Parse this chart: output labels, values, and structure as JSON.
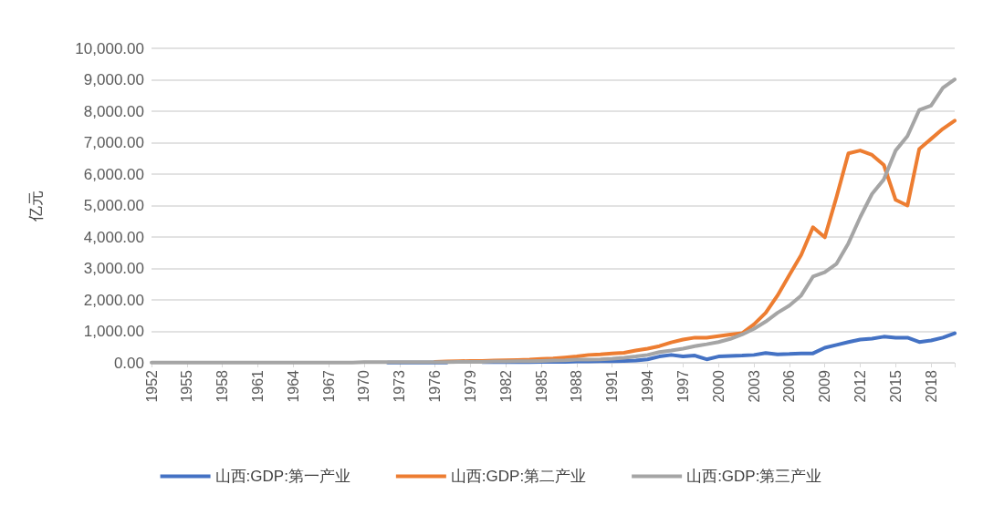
{
  "chart_data": {
    "type": "line",
    "ylabel": "亿元",
    "categories": [
      "1952",
      null,
      null,
      "1955",
      null,
      null,
      "1958",
      null,
      null,
      "1961",
      null,
      null,
      "1964",
      null,
      null,
      "1967",
      null,
      null,
      "1970",
      null,
      null,
      "1973",
      null,
      null,
      "1976",
      null,
      null,
      "1979",
      null,
      null,
      "1982",
      null,
      null,
      "1985",
      null,
      null,
      "1988",
      null,
      null,
      "1991",
      null,
      null,
      "1994",
      null,
      null,
      "1997",
      null,
      null,
      "2000",
      null,
      null,
      "2003",
      null,
      null,
      "2006",
      null,
      null,
      "2009",
      null,
      null,
      "2012",
      null,
      null,
      "2015",
      null,
      null,
      "2018",
      null,
      null
    ],
    "series": [
      {
        "name": "山西:GDP:第一产业",
        "color": "#4472c4",
        "values": [
          null,
          null,
          null,
          null,
          null,
          null,
          null,
          null,
          null,
          null,
          null,
          null,
          null,
          null,
          null,
          null,
          null,
          null,
          null,
          null,
          10,
          10,
          10,
          10,
          10,
          10,
          null,
          null,
          20,
          20,
          20,
          20,
          20,
          30,
          30,
          30,
          40,
          40,
          50,
          50,
          60,
          70,
          110,
          200,
          250,
          200,
          230,
          110,
          200,
          220,
          230,
          250,
          310,
          270,
          280,
          300,
          300,
          480,
          570,
          660,
          740,
          770,
          830,
          800,
          800,
          660,
          710,
          800,
          940
        ]
      },
      {
        "name": "山西:GDP:第二产业",
        "color": "#ed7d31",
        "values": [
          null,
          null,
          null,
          null,
          null,
          null,
          null,
          null,
          null,
          null,
          null,
          null,
          null,
          null,
          null,
          null,
          null,
          null,
          null,
          null,
          null,
          null,
          null,
          null,
          30,
          40,
          50,
          60,
          60,
          70,
          80,
          90,
          100,
          120,
          140,
          170,
          200,
          250,
          270,
          300,
          320,
          390,
          450,
          530,
          650,
          740,
          800,
          800,
          850,
          900,
          940,
          1220,
          1590,
          2140,
          2790,
          3430,
          4310,
          3990,
          5280,
          6660,
          6750,
          6610,
          6290,
          5180,
          5000,
          6800,
          7120,
          7440,
          7700
        ]
      },
      {
        "name": "山西:GDP:第三产业",
        "color": "#a5a5a5",
        "values": [
          10,
          10,
          10,
          10,
          10,
          10,
          10,
          10,
          10,
          10,
          10,
          10,
          10,
          10,
          10,
          10,
          10,
          10,
          20,
          20,
          20,
          20,
          20,
          20,
          20,
          20,
          30,
          30,
          30,
          40,
          40,
          50,
          50,
          60,
          70,
          80,
          100,
          100,
          110,
          130,
          160,
          200,
          250,
          340,
          390,
          450,
          530,
          590,
          660,
          760,
          900,
          1080,
          1310,
          1590,
          1820,
          2140,
          2740,
          2880,
          3150,
          3800,
          4630,
          5370,
          5830,
          6750,
          7210,
          8040,
          8180,
          8740,
          9010
        ]
      }
    ],
    "ylim": [
      0,
      10000
    ],
    "yticks": [
      {
        "value": 0,
        "label": "0.00"
      },
      {
        "value": 1000,
        "label": "1,000.00"
      },
      {
        "value": 2000,
        "label": "2,000.00"
      },
      {
        "value": 3000,
        "label": "3,000.00"
      },
      {
        "value": 4000,
        "label": "4,000.00"
      },
      {
        "value": 5000,
        "label": "5,000.00"
      },
      {
        "value": 6000,
        "label": "6,000.00"
      },
      {
        "value": 7000,
        "label": "7,000.00"
      },
      {
        "value": 8000,
        "label": "8,000.00"
      },
      {
        "value": 9000,
        "label": "9,000.00"
      },
      {
        "value": 10000,
        "label": "10,000.00"
      }
    ],
    "grid": "y",
    "legend": "bottom",
    "marker": "none",
    "line_style": "solid"
  }
}
